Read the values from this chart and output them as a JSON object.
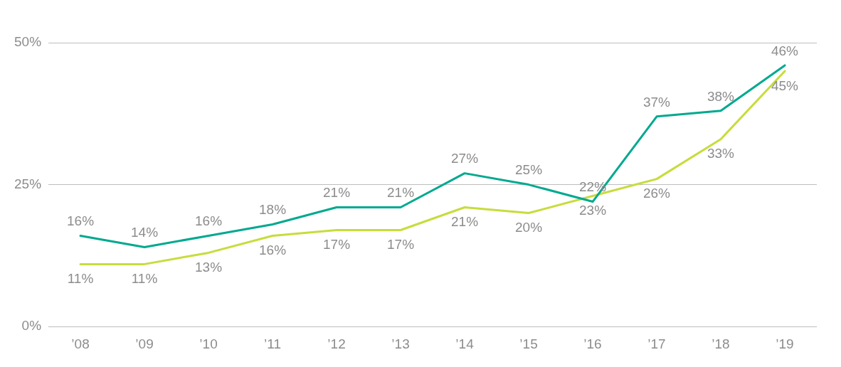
{
  "chart_data": {
    "type": "line",
    "categories": [
      "’08",
      "’09",
      "’10",
      "’11",
      "’12",
      "’13",
      "’14",
      "’15",
      "’16",
      "’17",
      "’18",
      "’19"
    ],
    "series": [
      {
        "color": "#00a98f",
        "values": [
          16,
          14,
          16,
          18,
          21,
          21,
          27,
          25,
          22,
          37,
          38,
          46
        ],
        "value_labels": [
          "16%",
          "14%",
          "16%",
          "18%",
          "21%",
          "21%",
          "27%",
          "25%",
          "22%",
          "37%",
          "38%",
          "46%"
        ]
      },
      {
        "color": "#c8dc3c",
        "values": [
          11,
          11,
          13,
          16,
          17,
          17,
          21,
          20,
          23,
          26,
          33,
          45
        ],
        "value_labels": [
          "11%",
          "11%",
          "13%",
          "16%",
          "17%",
          "17%",
          "21%",
          "20%",
          "23%",
          "26%",
          "33%",
          "45%"
        ]
      }
    ],
    "ylim": [
      0,
      50
    ],
    "yticks": [
      {
        "value": 0,
        "label": "0%"
      },
      {
        "value": 25,
        "label": "25%"
      },
      {
        "value": 50,
        "label": "50%"
      }
    ],
    "grid": "y",
    "marker": "none",
    "line_style": "solid"
  }
}
